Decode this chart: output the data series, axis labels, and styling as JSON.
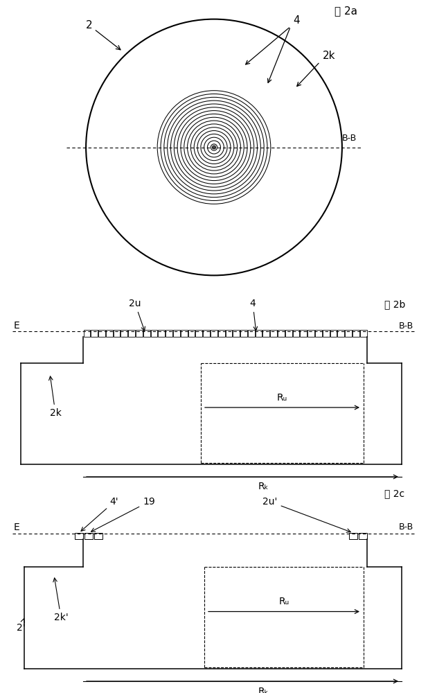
{
  "bg_color": "#ffffff",
  "line_color": "#000000",
  "fig2a_label": "图 2a",
  "fig2b_label": "图 2b",
  "fig2c_label": "图 2c",
  "label_2": "2",
  "label_4": "4",
  "label_2k": "2k",
  "label_2u": "2u",
  "label_4p": "4'",
  "label_19": "19",
  "label_2up": "2u'",
  "label_2p": "2'",
  "label_2kp": "2k'",
  "label_BB": "B-B",
  "label_E": "E",
  "label_Ru": "Rᵤ",
  "label_Rk": "Rₖ",
  "num_rings": 17,
  "ring_min": 0.022,
  "ring_max": 0.385
}
